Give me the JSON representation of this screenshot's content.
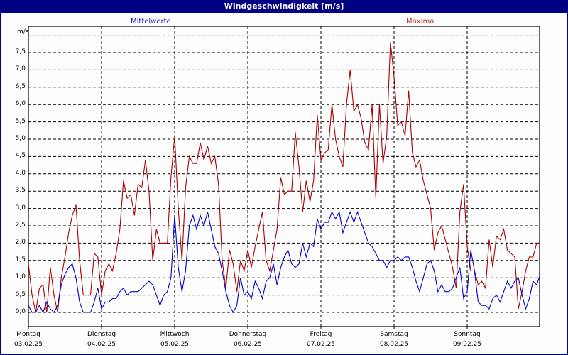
{
  "window": {
    "title": "Windgeschwindigkeit [m/s]"
  },
  "legend": {
    "mean_label": "Mittelwerte",
    "max_label": "Maxima"
  },
  "colors": {
    "mean": "#0000cc",
    "max": "#aa0000",
    "titlebar": "#000080",
    "mean_legend": "#2020d0",
    "max_legend": "#c03030"
  },
  "y_axis": {
    "unit": "m/s",
    "ticks": [
      "7,5",
      "7,0",
      "6,5",
      "6,0",
      "5,5",
      "5,0",
      "4,5",
      "4,0",
      "3,5",
      "3,0",
      "2,5",
      "2,0",
      "1,5",
      "1,0",
      "0,5",
      "0,0"
    ]
  },
  "x_axis": {
    "days": [
      {
        "day": "Montag",
        "date": "03.02.25"
      },
      {
        "day": "Dienstag",
        "date": "04.02.25"
      },
      {
        "day": "Mittwoch",
        "date": "05.02.25"
      },
      {
        "day": "Donnerstag",
        "date": "06.02.25"
      },
      {
        "day": "Freitag",
        "date": "07.02.25"
      },
      {
        "day": "Samstag",
        "date": "08.02.25"
      },
      {
        "day": "Sonntag",
        "date": "09.02.25"
      }
    ]
  },
  "chart_data": {
    "type": "line",
    "title": "Windgeschwindigkeit [m/s]",
    "xlabel": "",
    "ylabel": "m/s",
    "ylim": [
      0,
      8
    ],
    "grid": true,
    "categories": [
      "Montag 03.02.25",
      "Dienstag 04.02.25",
      "Mittwoch 05.02.25",
      "Donnerstag 06.02.25",
      "Freitag 07.02.25",
      "Samstag 08.02.25",
      "Sonntag 09.02.25"
    ],
    "x_unit": "days since Montag 03.02.25 00:00",
    "series": [
      {
        "name": "Mittelwerte",
        "color": "#0000cc",
        "x": [
          0.0,
          0.05,
          0.1,
          0.15,
          0.2,
          0.25,
          0.3,
          0.35,
          0.4,
          0.45,
          0.5,
          0.55,
          0.6,
          0.65,
          0.7,
          0.75,
          0.8,
          0.85,
          0.9,
          0.95,
          1.0,
          1.05,
          1.1,
          1.15,
          1.2,
          1.25,
          1.3,
          1.35,
          1.4,
          1.45,
          1.5,
          1.55,
          1.6,
          1.65,
          1.7,
          1.75,
          1.8,
          1.85,
          1.9,
          1.95,
          2.0,
          2.05,
          2.1,
          2.15,
          2.2,
          2.25,
          2.3,
          2.35,
          2.4,
          2.45,
          2.5,
          2.55,
          2.6,
          2.65,
          2.7,
          2.75,
          2.8,
          2.85,
          2.9,
          2.95,
          3.0,
          3.05,
          3.1,
          3.15,
          3.2,
          3.25,
          3.3,
          3.35,
          3.4,
          3.45,
          3.5,
          3.55,
          3.6,
          3.65,
          3.7,
          3.75,
          3.8,
          3.85,
          3.9,
          3.95,
          4.0,
          4.05,
          4.1,
          4.15,
          4.2,
          4.25,
          4.3,
          4.35,
          4.4,
          4.45,
          4.5,
          4.55,
          4.6,
          4.65,
          4.7,
          4.75,
          4.8,
          4.85,
          4.9,
          4.95,
          5.0,
          5.05,
          5.1,
          5.15,
          5.2,
          5.25,
          5.3,
          5.35,
          5.4,
          5.45,
          5.5,
          5.55,
          5.6,
          5.65,
          5.7,
          5.75,
          5.8,
          5.85,
          5.9,
          5.95,
          6.0,
          6.05,
          6.1,
          6.15,
          6.2,
          6.25,
          6.3,
          6.35,
          6.4,
          6.45,
          6.5,
          6.55,
          6.6,
          6.65,
          6.7,
          6.75,
          6.8,
          6.85,
          6.9,
          6.95,
          7.0
        ],
        "values": [
          0.2,
          0.0,
          0.0,
          0.2,
          0.0,
          0.3,
          0.1,
          0.0,
          0.2,
          0.8,
          1.1,
          1.3,
          1.4,
          1.0,
          0.3,
          0.0,
          0.0,
          0.0,
          0.3,
          0.7,
          0.1,
          0.3,
          0.3,
          0.4,
          0.4,
          0.6,
          0.7,
          0.5,
          0.6,
          0.6,
          0.6,
          0.7,
          0.8,
          0.9,
          0.8,
          0.5,
          0.2,
          0.5,
          0.6,
          1.0,
          2.8,
          1.3,
          0.6,
          1.2,
          2.5,
          2.8,
          2.4,
          2.8,
          2.5,
          2.9,
          2.4,
          1.9,
          1.7,
          1.2,
          0.6,
          0.2,
          0.0,
          0.2,
          1.0,
          0.5,
          0.6,
          0.4,
          0.9,
          0.7,
          0.4,
          0.9,
          1.0,
          1.4,
          0.8,
          1.3,
          1.6,
          1.8,
          1.4,
          1.3,
          1.4,
          2.0,
          1.6,
          2.0,
          1.9,
          2.7,
          2.4,
          2.6,
          2.6,
          2.9,
          2.7,
          2.9,
          2.3,
          2.6,
          2.9,
          2.6,
          2.9,
          2.6,
          2.3,
          2.0,
          1.9,
          1.7,
          1.5,
          1.5,
          1.3,
          1.5,
          1.5,
          1.6,
          1.5,
          1.6,
          1.6,
          1.3,
          0.9,
          0.6,
          1.0,
          1.4,
          1.5,
          1.2,
          0.6,
          0.8,
          0.6,
          0.6,
          0.7,
          1.0,
          1.3,
          0.4,
          0.6,
          1.8,
          1.2,
          0.3,
          0.2,
          0.2,
          0.1,
          0.4,
          0.5,
          0.3,
          0.6,
          0.9,
          0.7,
          0.9,
          1.0,
          0.5,
          0.1,
          0.4,
          0.9,
          0.8,
          1.1
        ]
      },
      {
        "name": "Maxima",
        "color": "#aa0000",
        "x": [
          0.0,
          0.05,
          0.1,
          0.15,
          0.2,
          0.25,
          0.3,
          0.35,
          0.4,
          0.45,
          0.5,
          0.55,
          0.6,
          0.65,
          0.7,
          0.75,
          0.8,
          0.85,
          0.9,
          0.95,
          1.0,
          1.05,
          1.1,
          1.15,
          1.2,
          1.25,
          1.3,
          1.35,
          1.4,
          1.45,
          1.5,
          1.55,
          1.6,
          1.65,
          1.7,
          1.75,
          1.8,
          1.85,
          1.9,
          1.95,
          2.0,
          2.05,
          2.1,
          2.15,
          2.2,
          2.25,
          2.3,
          2.35,
          2.4,
          2.45,
          2.5,
          2.55,
          2.6,
          2.65,
          2.7,
          2.75,
          2.8,
          2.85,
          2.9,
          2.95,
          3.0,
          3.05,
          3.1,
          3.15,
          3.2,
          3.25,
          3.3,
          3.35,
          3.4,
          3.45,
          3.5,
          3.55,
          3.6,
          3.65,
          3.7,
          3.75,
          3.8,
          3.85,
          3.9,
          3.95,
          4.0,
          4.05,
          4.1,
          4.15,
          4.2,
          4.25,
          4.3,
          4.35,
          4.4,
          4.45,
          4.5,
          4.55,
          4.6,
          4.65,
          4.7,
          4.75,
          4.8,
          4.85,
          4.9,
          4.95,
          5.0,
          5.05,
          5.1,
          5.15,
          5.2,
          5.25,
          5.3,
          5.35,
          5.4,
          5.45,
          5.5,
          5.55,
          5.6,
          5.65,
          5.7,
          5.75,
          5.8,
          5.85,
          5.9,
          5.95,
          6.0,
          6.05,
          6.1,
          6.15,
          6.2,
          6.25,
          6.3,
          6.35,
          6.4,
          6.45,
          6.5,
          6.55,
          6.6,
          6.65,
          6.7,
          6.75,
          6.8,
          6.85,
          6.9,
          6.95,
          7.0
        ],
        "values": [
          1.4,
          0.5,
          0.0,
          0.7,
          0.8,
          0.0,
          1.3,
          0.5,
          0.0,
          1.0,
          1.6,
          2.3,
          2.8,
          3.1,
          1.5,
          0.5,
          0.5,
          0.5,
          1.7,
          1.6,
          0.5,
          1.2,
          1.4,
          1.2,
          1.7,
          2.4,
          3.8,
          3.3,
          3.4,
          2.8,
          3.7,
          3.6,
          4.4,
          3.5,
          1.5,
          2.4,
          2.0,
          2.0,
          2.0,
          3.9,
          5.1,
          3.0,
          1.5,
          3.6,
          4.5,
          4.3,
          4.3,
          4.9,
          4.4,
          4.8,
          4.3,
          4.5,
          3.7,
          1.5,
          0.7,
          1.8,
          1.4,
          0.6,
          1.5,
          1.2,
          1.8,
          1.3,
          1.9,
          2.4,
          2.9,
          1.5,
          1.2,
          1.8,
          2.4,
          3.9,
          3.4,
          3.5,
          3.5,
          5.2,
          4.2,
          2.9,
          3.8,
          3.2,
          3.8,
          5.7,
          4.4,
          4.6,
          4.7,
          6.0,
          5.0,
          4.5,
          4.2,
          6.0,
          7.0,
          5.8,
          6.0,
          5.6,
          4.9,
          4.7,
          6.0,
          3.3,
          6.0,
          4.3,
          5.1,
          7.8,
          6.8,
          5.4,
          5.5,
          5.1,
          6.4,
          4.6,
          4.2,
          4.4,
          3.8,
          3.4,
          3.0,
          1.8,
          2.3,
          2.5,
          2.1,
          1.7,
          1.3,
          0.7,
          2.9,
          3.7,
          1.9,
          1.2,
          1.2,
          0.8,
          0.9,
          0.7,
          2.1,
          1.3,
          2.2,
          2.1,
          2.4,
          1.8,
          1.7,
          1.6,
          0.1,
          0.6,
          1.2,
          1.6,
          1.6,
          2.0,
          2.0
        ]
      }
    ]
  }
}
